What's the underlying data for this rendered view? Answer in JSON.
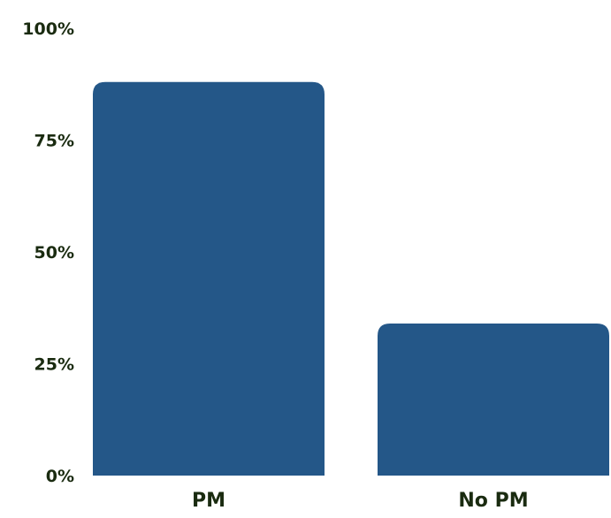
{
  "chart_data": {
    "type": "bar",
    "title": "",
    "xlabel": "",
    "ylabel": "",
    "categories": [
      "PM",
      "No PM"
    ],
    "values": [
      88,
      34
    ],
    "ylim": [
      0,
      100
    ],
    "yticks": [
      0,
      25,
      50,
      75,
      100
    ],
    "ytick_labels": [
      "0%",
      "25%",
      "50%",
      "75%",
      "100%"
    ],
    "grid": false,
    "legend": "none",
    "colors": {
      "bar": "#245788",
      "text": "#1a2b10",
      "background": "#ffffff"
    }
  }
}
